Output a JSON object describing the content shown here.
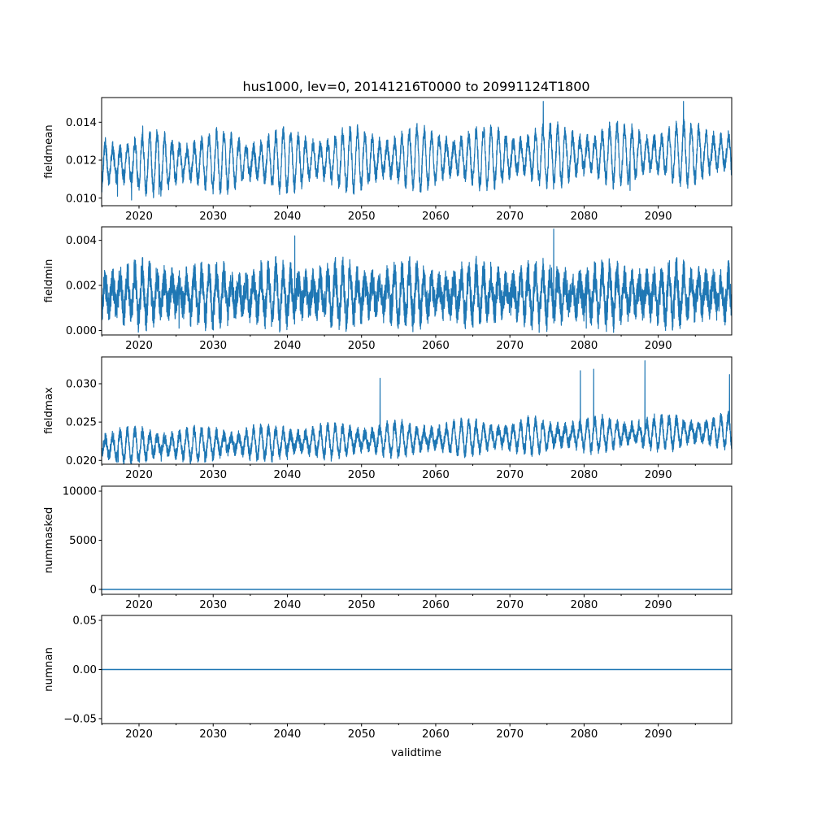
{
  "chart_data": {
    "type": "line",
    "title": "hus1000, lev=0, 20141216T0000 to 20991124T1800",
    "xlabel": "validtime",
    "x_range": [
      2014.96,
      2099.9
    ],
    "x_ticks": [
      2020,
      2030,
      2040,
      2050,
      2060,
      2070,
      2080,
      2090
    ],
    "x_tick_labels": [
      "2020",
      "2030",
      "2040",
      "2050",
      "2060",
      "2070",
      "2080",
      "2090"
    ],
    "x_minor_ticks": [
      2015,
      2025,
      2035,
      2045,
      2055,
      2065,
      2075,
      2085,
      2095
    ],
    "line_color": "#1f77b4",
    "panels": [
      {
        "ylabel": "fieldmean",
        "ylim": [
          0.0096,
          0.0153
        ],
        "y_ticks": [
          0.01,
          0.012,
          0.014
        ],
        "y_tick_labels": [
          "0.010",
          "0.012",
          "0.014"
        ],
        "series": {
          "kind": "seasonal",
          "base_start": 0.0118,
          "base_end": 0.0124,
          "amplitude": 0.0013,
          "noise": 0.0004,
          "peaks": [
            [
              2020.5,
              0.0138
            ],
            [
              2074.5,
              0.0151
            ],
            [
              2093.4,
              0.0151
            ]
          ],
          "troughs": [
            [
              2017.1,
              0.0101
            ],
            [
              2019.0,
              0.0099
            ],
            [
              2022.7,
              0.0102
            ],
            [
              2086.2,
              0.0104
            ]
          ]
        }
      },
      {
        "ylabel": "fieldmin",
        "ylim": [
          -0.0002,
          0.0046
        ],
        "y_ticks": [
          0.0,
          0.002,
          0.004
        ],
        "y_tick_labels": [
          "0.000",
          "0.002",
          "0.004"
        ],
        "series": {
          "kind": "seasonal",
          "base_start": 0.0016,
          "base_end": 0.0016,
          "amplitude": 0.0009,
          "noise": 0.0007,
          "peaks": [
            [
              2075.9,
              0.0045
            ],
            [
              2041.0,
              0.0042
            ]
          ],
          "troughs": [
            [
              2025.4,
              0.0001
            ],
            [
              2080.3,
              0.0001
            ],
            [
              2048.0,
              0.0002
            ]
          ]
        }
      },
      {
        "ylabel": "fieldmax",
        "ylim": [
          0.0195,
          0.0335
        ],
        "y_ticks": [
          0.02,
          0.025,
          0.03
        ],
        "y_tick_labels": [
          "0.020",
          "0.025",
          "0.030"
        ],
        "series": {
          "kind": "seasonal",
          "base_start": 0.0218,
          "base_end": 0.0238,
          "amplitude": 0.0017,
          "noise": 0.0008,
          "peaks": [
            [
              2088.2,
              0.033
            ],
            [
              2081.3,
              0.0319
            ],
            [
              2079.5,
              0.0317
            ],
            [
              2099.6,
              0.0312
            ],
            [
              2052.5,
              0.0307
            ]
          ],
          "troughs": [
            [
              2017.2,
              0.0198
            ],
            [
              2023.0,
              0.0199
            ],
            [
              2040.0,
              0.0201
            ]
          ]
        }
      },
      {
        "ylabel": "nummasked",
        "ylim": [
          -500,
          10500
        ],
        "y_ticks": [
          0,
          5000,
          10000
        ],
        "y_tick_labels": [
          "0",
          "5000",
          "10000"
        ],
        "series": {
          "kind": "constant",
          "value": 0
        }
      },
      {
        "ylabel": "numnan",
        "ylim": [
          -0.055,
          0.055
        ],
        "y_ticks": [
          -0.05,
          0.0,
          0.05
        ],
        "y_tick_labels": [
          "−0.05",
          "0.00",
          "0.05"
        ],
        "series": {
          "kind": "constant",
          "value": 0
        }
      }
    ]
  }
}
